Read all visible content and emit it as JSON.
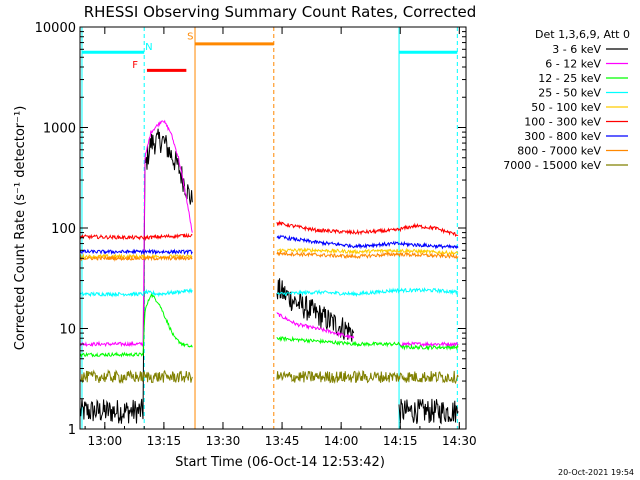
{
  "chart_data": {
    "type": "line",
    "title": "RHESSI Observing Summary Count Rates, Corrected",
    "xlabel": "Start Time (06-Oct-14 12:53:42)",
    "ylabel": "Corrected Count Rate (s⁻¹ detector⁻¹)",
    "x_ticks": [
      "13:00",
      "13:15",
      "13:30",
      "13:45",
      "14:00",
      "14:15",
      "14:30"
    ],
    "x_tick_minutes": [
      6.3,
      21.3,
      36.3,
      51.3,
      66.3,
      81.3,
      96.3
    ],
    "xlim_minutes": [
      0,
      98
    ],
    "y_scale": "log",
    "ylim": [
      1,
      10000
    ],
    "y_ticks": [
      "1",
      "10",
      "100",
      "1000",
      "10000"
    ],
    "legend_header": "Det 1,3,6,9, Att 0",
    "legend_position": "right",
    "series": [
      {
        "name": "3 - 6 keV",
        "color": "#000000",
        "x": [
          0,
          16,
          16.5,
          18,
          21,
          23,
          25,
          27,
          28.5,
          49.5,
          50,
          55,
          60,
          65,
          69.5,
          70,
          81,
          82,
          96
        ],
        "y": [
          1.5,
          1.5,
          400,
          700,
          750,
          550,
          400,
          250,
          180,
          null,
          25,
          18,
          14,
          11,
          9,
          null,
          1.5,
          1.5,
          1.5
        ]
      },
      {
        "name": "6 - 12 keV",
        "color": "#ff00ff",
        "x": [
          0,
          16,
          16.5,
          18,
          21,
          23,
          25,
          27,
          28.5,
          49.5,
          50,
          55,
          60,
          65,
          69.5,
          70,
          81,
          82,
          96
        ],
        "y": [
          7,
          7,
          500,
          900,
          1200,
          900,
          500,
          200,
          90,
          null,
          14,
          11,
          10,
          9,
          8,
          null,
          7,
          7,
          7
        ]
      },
      {
        "name": "12 - 25 keV",
        "color": "#00ff00",
        "x": [
          0,
          16,
          16.5,
          18,
          20,
          22,
          24,
          26,
          28.5,
          49.5,
          50,
          60,
          70,
          81,
          82,
          96
        ],
        "y": [
          5.5,
          5.5,
          15,
          22,
          18,
          12,
          8,
          7,
          6.5,
          null,
          8,
          7.5,
          7,
          7,
          6.5,
          6.5
        ]
      },
      {
        "name": "25 - 50 keV",
        "color": "#00ffff",
        "x": [
          0,
          16,
          16.5,
          20,
          28.5,
          49.5,
          50,
          60,
          70,
          80,
          90,
          96
        ],
        "y": [
          22,
          22,
          23,
          22,
          24,
          null,
          22,
          23,
          22,
          24,
          24,
          23
        ]
      },
      {
        "name": "50 - 100 keV",
        "color": "#ffcc00",
        "x": [
          0,
          16,
          28.5,
          49.5,
          50,
          60,
          70,
          80,
          96
        ],
        "y": [
          52,
          52,
          52,
          null,
          60,
          60,
          58,
          60,
          56
        ]
      },
      {
        "name": "100 - 300 keV",
        "color": "#ff0000",
        "x": [
          0,
          16,
          28.5,
          49.5,
          50,
          60,
          70,
          80,
          85,
          90,
          96
        ],
        "y": [
          82,
          80,
          85,
          null,
          112,
          95,
          90,
          95,
          105,
          100,
          85
        ]
      },
      {
        "name": "300 - 800 keV",
        "color": "#0000ff",
        "x": [
          0,
          16,
          28.5,
          49.5,
          50,
          60,
          70,
          80,
          96
        ],
        "y": [
          58,
          58,
          58,
          null,
          82,
          72,
          66,
          70,
          64
        ]
      },
      {
        "name": "800 - 7000 keV",
        "color": "#ff8800",
        "x": [
          0,
          16,
          28.5,
          49.5,
          50,
          60,
          70,
          80,
          96
        ],
        "y": [
          50,
          50,
          50,
          null,
          56,
          54,
          52,
          55,
          52
        ]
      },
      {
        "name": "7000 - 15000 keV",
        "color": "#808000",
        "x": [
          0,
          16,
          28.5,
          49.5,
          50,
          60,
          70,
          80,
          96
        ],
        "y": [
          3.3,
          3.3,
          3.3,
          null,
          3.3,
          3.3,
          3.3,
          3.3,
          3.3
        ]
      }
    ],
    "annotations": [
      {
        "label": "N",
        "color": "#00ffff"
      },
      {
        "label": "F",
        "color": "#ff0000"
      },
      {
        "label": "S",
        "color": "#ff8800"
      }
    ]
  },
  "footer_date": "20-Oct-2021 19:54"
}
